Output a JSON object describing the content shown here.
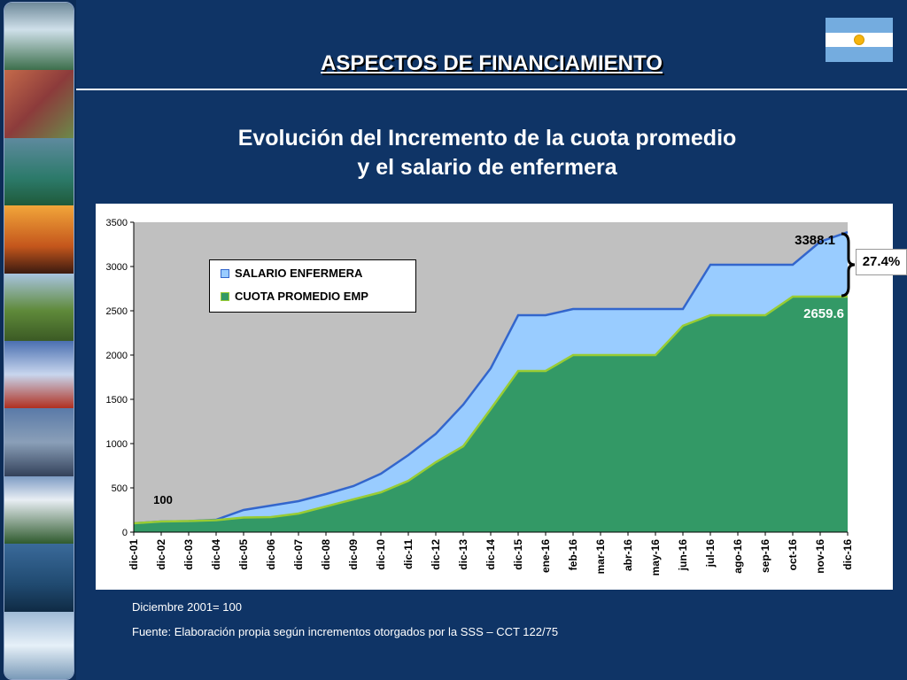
{
  "header": {
    "title": "ASPECTOS DE FINANCIAMIENTO"
  },
  "chart_title": {
    "line1": "Evolución del Incremento de la cuota promedio",
    "line2": "y el salario de enfermera"
  },
  "colors": {
    "background": "#0f3466",
    "salario_fill": "#99ccff",
    "salario_line": "#3366cc",
    "cuota_fill": "#339966",
    "cuota_line": "#99cc33",
    "plot_bg": "#c0c0c0"
  },
  "chart_data": {
    "type": "area",
    "title": "Evolución del Incremento de la cuota promedio y el salario de enfermera",
    "xlabel": "",
    "ylabel": "",
    "ylim": [
      0,
      3500
    ],
    "yticks": [
      0,
      500,
      1000,
      1500,
      2000,
      2500,
      3000,
      3500
    ],
    "grid": false,
    "legend_position": "top-left",
    "categories": [
      "dic-01",
      "dic-02",
      "dic-03",
      "dic-04",
      "dic-05",
      "dic-06",
      "dic-07",
      "dic-08",
      "dic-09",
      "dic-10",
      "dic-11",
      "dic-12",
      "dic-13",
      "dic-14",
      "dic-15",
      "ene-16",
      "feb-16",
      "mar-16",
      "abr-16",
      "may-16",
      "jun-16",
      "jul-16",
      "ago-16",
      "sep-16",
      "oct-16",
      "nov-16",
      "dic-16"
    ],
    "series": [
      {
        "name": "SALARIO ENFERMERA",
        "values": [
          100,
          120,
          125,
          140,
          250,
          300,
          350,
          430,
          520,
          660,
          870,
          1110,
          1440,
          1850,
          2450,
          2450,
          2520,
          2520,
          2520,
          2520,
          2520,
          3020,
          3020,
          3020,
          3020,
          3280,
          3388.1
        ]
      },
      {
        "name": "CUOTA PROMEDIO EMP",
        "values": [
          100,
          120,
          125,
          135,
          165,
          170,
          210,
          290,
          370,
          450,
          580,
          790,
          970,
          1390,
          1820,
          1820,
          2000,
          2000,
          2000,
          2000,
          2330,
          2450,
          2450,
          2450,
          2659.6,
          2659.6,
          2659.6
        ]
      }
    ],
    "annotations": {
      "start_label": "100",
      "salario_end_label": "3388.1",
      "cuota_end_label": "2659.6",
      "difference_label": "27.4%"
    }
  },
  "notes": {
    "base": "Diciembre 2001= 100",
    "source": "Fuente: Elaboración propia según incrementos otorgados por la SSS – CCT 122/75"
  }
}
